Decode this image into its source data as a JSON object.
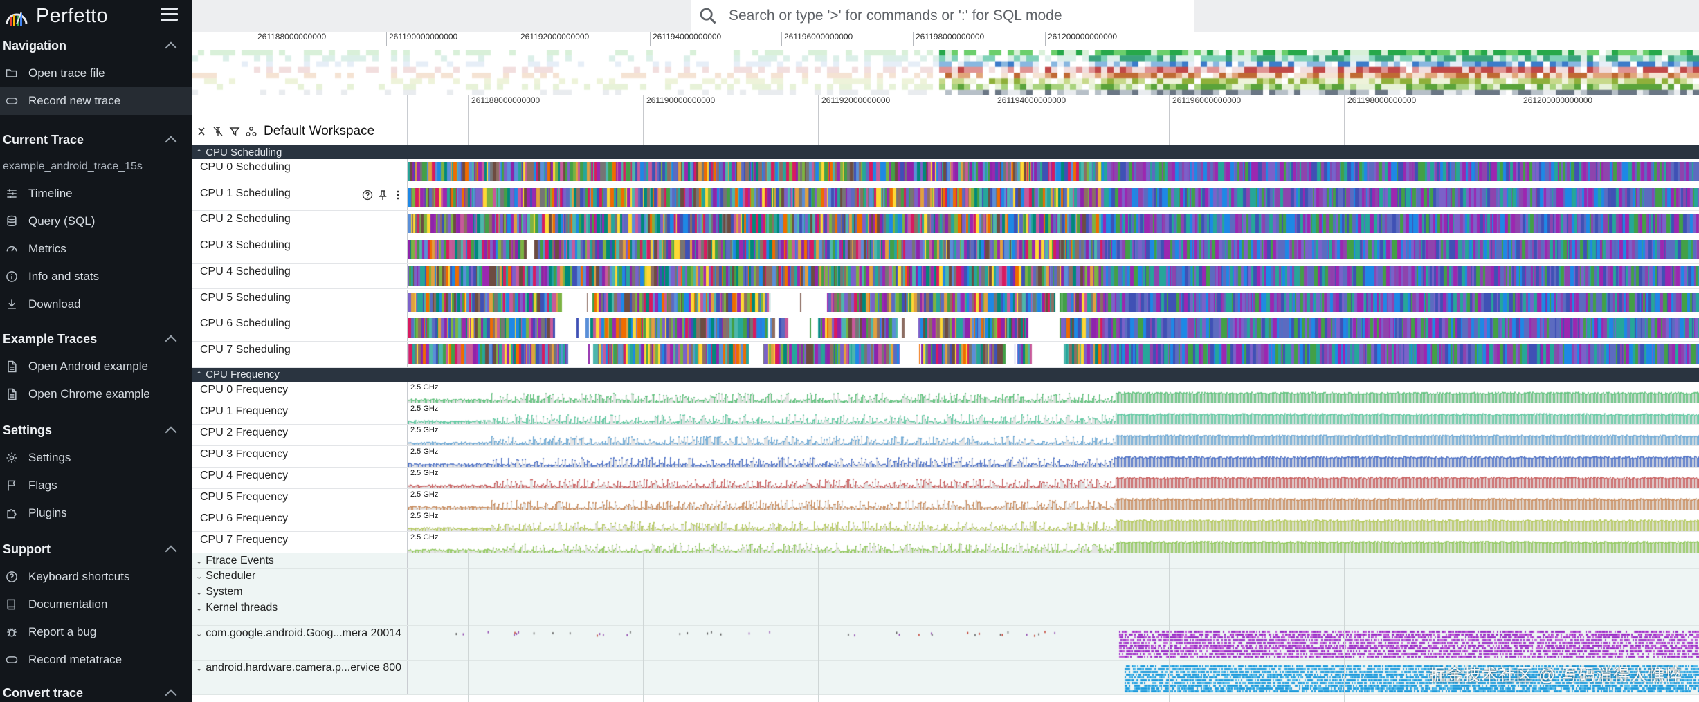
{
  "app": {
    "title": "Perfetto"
  },
  "search": {
    "placeholder": "Search or type '>' for commands or ':' for SQL mode"
  },
  "sidebar": {
    "sections": [
      {
        "title": "Navigation",
        "items": [
          {
            "label": "Open trace file",
            "icon": "folder-open-icon"
          },
          {
            "label": "Record new trace",
            "icon": "record-icon",
            "active": true
          }
        ]
      },
      {
        "title": "Current Trace",
        "trace_name": "example_android_trace_15s",
        "items": [
          {
            "label": "Timeline",
            "icon": "timeline-icon"
          },
          {
            "label": "Query (SQL)",
            "icon": "database-icon"
          },
          {
            "label": "Metrics",
            "icon": "speedometer-icon"
          },
          {
            "label": "Info and stats",
            "icon": "info-icon"
          },
          {
            "label": "Download",
            "icon": "download-icon"
          }
        ]
      },
      {
        "title": "Example Traces",
        "items": [
          {
            "label": "Open Android example",
            "icon": "file-icon"
          },
          {
            "label": "Open Chrome example",
            "icon": "file-icon"
          }
        ]
      },
      {
        "title": "Settings",
        "items": [
          {
            "label": "Settings",
            "icon": "gear-icon"
          },
          {
            "label": "Flags",
            "icon": "flag-icon"
          },
          {
            "label": "Plugins",
            "icon": "puzzle-icon"
          }
        ]
      },
      {
        "title": "Support",
        "items": [
          {
            "label": "Keyboard shortcuts",
            "icon": "help-icon"
          },
          {
            "label": "Documentation",
            "icon": "book-icon"
          },
          {
            "label": "Report a bug",
            "icon": "bug-icon"
          },
          {
            "label": "Record metatrace",
            "icon": "record-icon"
          }
        ]
      },
      {
        "title": "Convert trace",
        "items": []
      }
    ]
  },
  "overview": {
    "ticks": [
      "261188000000000",
      "261190000000000",
      "261192000000000",
      "261194000000000",
      "261196000000000",
      "261198000000000",
      "261200000000000"
    ]
  },
  "timeline": {
    "workspace_label": "Default Workspace",
    "ticks": [
      "261188000000000",
      "261190000000000",
      "261192000000000",
      "261194000000000",
      "261196000000000",
      "261198000000000",
      "261200000000000"
    ]
  },
  "groups": {
    "cpu_scheduling": {
      "title": "CPU Scheduling",
      "tracks": [
        "CPU 0 Scheduling",
        "CPU 1 Scheduling",
        "CPU 2 Scheduling",
        "CPU 3 Scheduling",
        "CPU 4 Scheduling",
        "CPU 5 Scheduling",
        "CPU 6 Scheduling",
        "CPU 7 Scheduling"
      ]
    },
    "cpu_frequency": {
      "title": "CPU Frequency",
      "max_label": "2.5 GHz",
      "tracks": [
        "CPU 0 Frequency",
        "CPU 1 Frequency",
        "CPU 2 Frequency",
        "CPU 3 Frequency",
        "CPU 4 Frequency",
        "CPU 5 Frequency",
        "CPU 6 Frequency",
        "CPU 7 Frequency"
      ],
      "colors": [
        "#5cc27a",
        "#5cc9a0",
        "#6aa8d6",
        "#4a6fc7",
        "#c95a5a",
        "#c98a5a",
        "#b4c95a",
        "#8fc95a"
      ]
    },
    "collapsed": [
      "Ftrace Events",
      "Scheduler",
      "System",
      "Kernel threads"
    ],
    "processes": [
      "com.google.android.Goog...mera 20014",
      "android.hardware.camera.p...ervice 800"
    ]
  },
  "watermark": "掘金技术社区 @ 写码消得人憔悴"
}
